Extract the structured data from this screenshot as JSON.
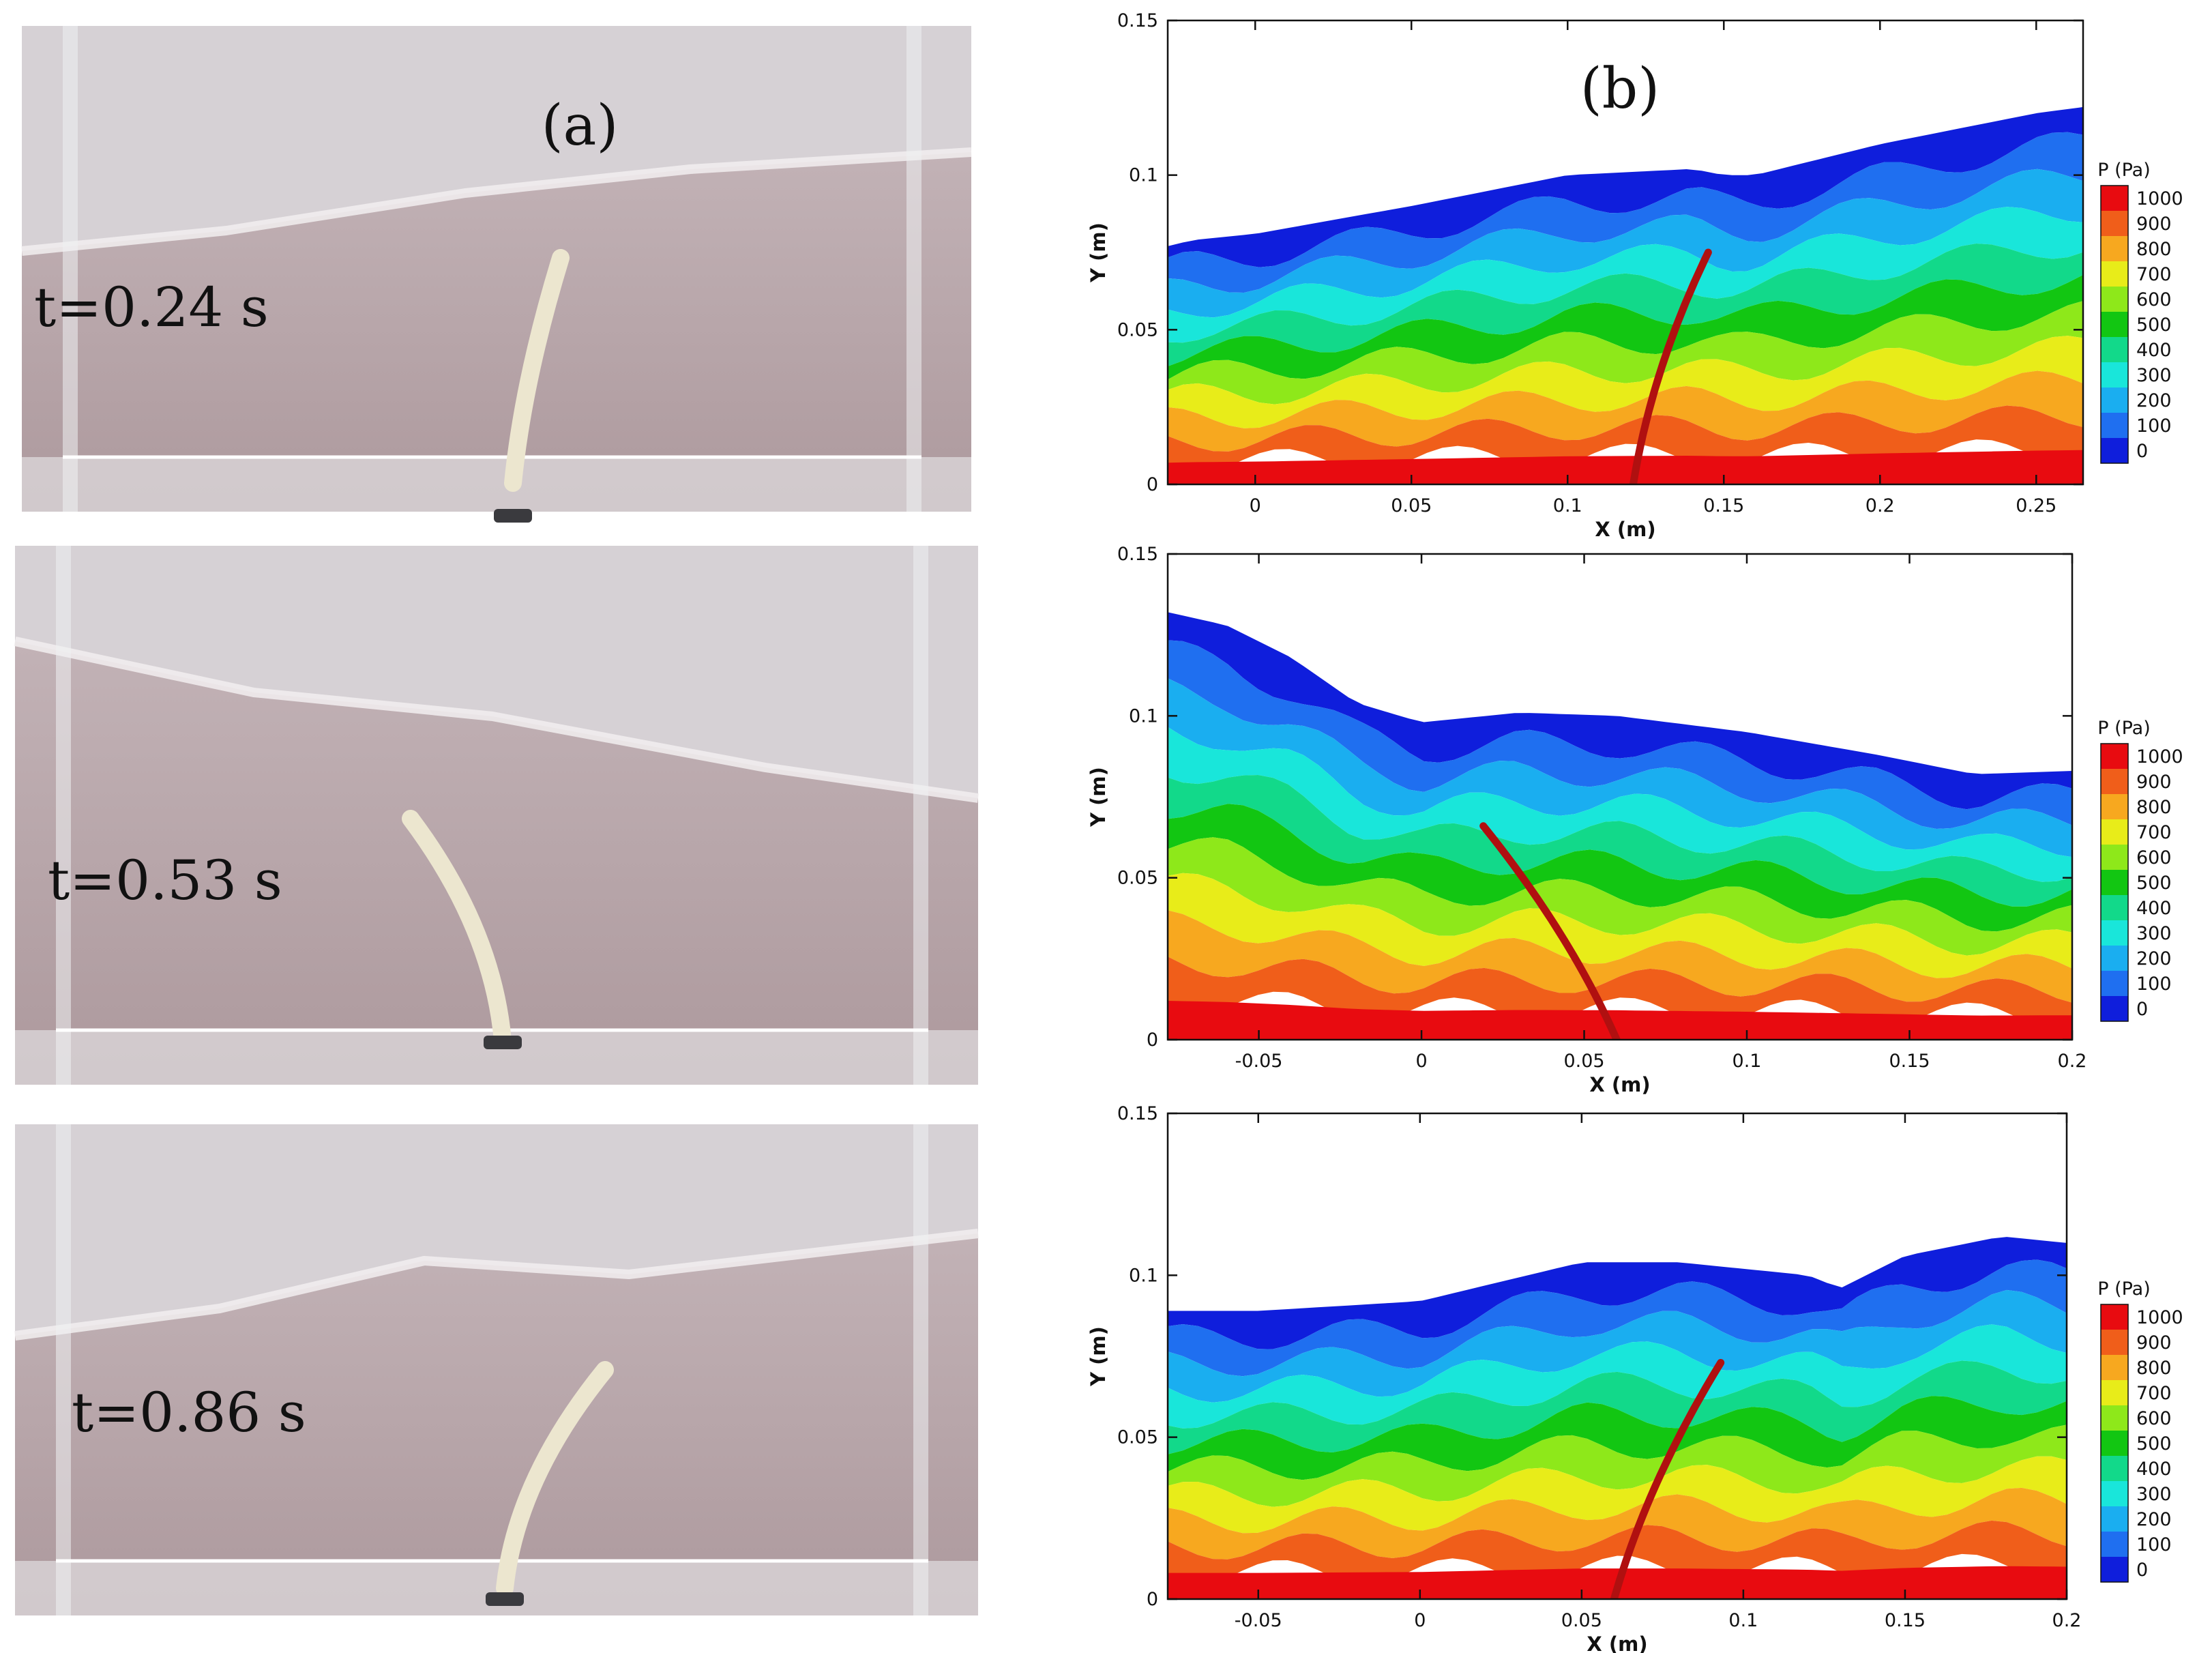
{
  "colors": {
    "tank_water": "#b7a2a5",
    "tank_air": "#d6d1d5",
    "tank_glass": "#eef0f2",
    "plate": "#ece6cf",
    "pressure_scale": [
      "#0f1edc",
      "#1f6ff0",
      "#1aaef0",
      "#19e6da",
      "#12d98a",
      "#12c612",
      "#8ee81a",
      "#e8ec19",
      "#f7a81f",
      "#f05e1a",
      "#e80b10"
    ]
  },
  "panel_a": {
    "label": "(a)",
    "frames": [
      {
        "time_label": "t=0.24 s"
      },
      {
        "time_label": "t=0.53 s"
      },
      {
        "time_label": "t=0.86 s"
      }
    ]
  },
  "panel_b": {
    "label": "(b)"
  },
  "chart_data": [
    {
      "type": "heatmap",
      "xlabel": "X (m)",
      "ylabel": "Y (m)",
      "xlim": [
        -0.028,
        0.265
      ],
      "ylim": [
        0,
        0.15
      ],
      "xticks": [
        "0",
        "0.05",
        "0.1",
        "0.15",
        "0.2",
        "0.25"
      ],
      "xtick_values": [
        0,
        0.05,
        0.1,
        0.15,
        0.2,
        0.25
      ],
      "yticks": [
        "0",
        "0.05",
        "0.1",
        "0.15"
      ],
      "ytick_values": [
        0,
        0.05,
        0.1,
        0.15
      ],
      "legend": {
        "title": "P (Pa)",
        "levels": [
          "1000",
          "900",
          "800",
          "700",
          "600",
          "500",
          "400",
          "300",
          "200",
          "100",
          "0"
        ],
        "placement": "right"
      },
      "free_surface": {
        "x": [
          -0.028,
          -0.02,
          0.0,
          0.05,
          0.1,
          0.14,
          0.15,
          0.16,
          0.2,
          0.25,
          0.265
        ],
        "y": [
          0.077,
          0.079,
          0.081,
          0.09,
          0.1,
          0.102,
          0.1,
          0.1,
          0.11,
          0.12,
          0.122
        ]
      },
      "plate": {
        "base": [
          0.121,
          0.0
        ],
        "tip": [
          0.145,
          0.075
        ]
      }
    },
    {
      "type": "heatmap",
      "xlabel": "X (m)",
      "ylabel": "Y (m)",
      "xlim": [
        -0.078,
        0.2
      ],
      "ylim": [
        0,
        0.15
      ],
      "xticks": [
        "-0.05",
        "0",
        "0.05",
        "0.1",
        "0.15",
        "0.2"
      ],
      "xtick_values": [
        -0.05,
        0,
        0.05,
        0.1,
        0.15,
        0.2
      ],
      "yticks": [
        "0",
        "0.05",
        "0.1",
        "0.15"
      ],
      "ytick_values": [
        0,
        0.05,
        0.1,
        0.15
      ],
      "legend": {
        "title": "P (Pa)",
        "levels": [
          "1000",
          "900",
          "800",
          "700",
          "600",
          "500",
          "400",
          "300",
          "200",
          "100",
          "0"
        ],
        "placement": "right"
      },
      "free_surface": {
        "x": [
          -0.078,
          -0.06,
          -0.04,
          -0.02,
          0.0,
          0.03,
          0.06,
          0.1,
          0.14,
          0.17,
          0.2
        ],
        "y": [
          0.132,
          0.128,
          0.118,
          0.104,
          0.098,
          0.101,
          0.1,
          0.095,
          0.088,
          0.082,
          0.083
        ]
      },
      "plate": {
        "base": [
          0.06,
          0.0
        ],
        "tip": [
          0.019,
          0.066
        ]
      }
    },
    {
      "type": "heatmap",
      "xlabel": "X (m)",
      "ylabel": "Y (m)",
      "xlim": [
        -0.078,
        0.2
      ],
      "ylim": [
        0,
        0.15
      ],
      "xticks": [
        "-0.05",
        "0",
        "0.05",
        "0.1",
        "0.15",
        "0.2"
      ],
      "xtick_values": [
        -0.05,
        0,
        0.05,
        0.1,
        0.15,
        0.2
      ],
      "yticks": [
        "0",
        "0.05",
        "0.1",
        "0.15"
      ],
      "ytick_values": [
        0,
        0.05,
        0.1,
        0.15
      ],
      "legend": {
        "title": "P (Pa)",
        "levels": [
          "1000",
          "900",
          "800",
          "700",
          "600",
          "500",
          "400",
          "300",
          "200",
          "100",
          "0"
        ],
        "placement": "right"
      },
      "free_surface": {
        "x": [
          -0.078,
          -0.05,
          0.0,
          0.05,
          0.08,
          0.12,
          0.13,
          0.15,
          0.18,
          0.2
        ],
        "y": [
          0.089,
          0.089,
          0.092,
          0.104,
          0.104,
          0.1,
          0.096,
          0.106,
          0.112,
          0.11
        ]
      },
      "plate": {
        "base": [
          0.06,
          0.0
        ],
        "tip": [
          0.093,
          0.073
        ]
      }
    }
  ]
}
